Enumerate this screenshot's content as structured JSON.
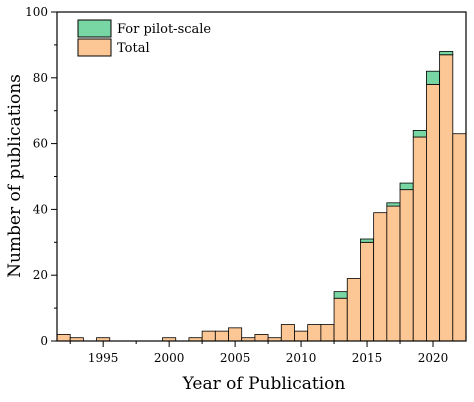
{
  "chart_data": {
    "type": "bar",
    "stacked": true,
    "xlabel": "Year of Publication",
    "ylabel": "Number of publications",
    "ylim": [
      0,
      100
    ],
    "xlim": [
      1991.5,
      2022.5
    ],
    "x_ticks": [
      1995,
      2000,
      2005,
      2010,
      2015,
      2020
    ],
    "y_ticks": [
      0,
      20,
      40,
      60,
      80,
      100
    ],
    "legend_position": "top-left",
    "years": [
      1992,
      1993,
      1994,
      1995,
      1996,
      1997,
      1998,
      1999,
      2000,
      2001,
      2002,
      2003,
      2004,
      2005,
      2006,
      2007,
      2008,
      2009,
      2010,
      2011,
      2012,
      2013,
      2014,
      2015,
      2016,
      2017,
      2018,
      2019,
      2020,
      2021,
      2022
    ],
    "series": [
      {
        "name": "Total",
        "color": "#fcc795",
        "values": [
          2,
          1,
          0,
          1,
          0,
          0,
          0,
          0,
          1,
          0,
          1,
          3,
          3,
          4,
          1,
          2,
          1,
          5,
          3,
          5,
          5,
          13,
          19,
          30,
          39,
          41,
          46,
          62,
          78,
          87,
          63
        ]
      },
      {
        "name": "For pilot-scale",
        "color": "#77d6a3",
        "values": [
          0,
          0,
          0,
          0,
          0,
          0,
          0,
          0,
          0,
          0,
          0,
          0,
          0,
          0,
          0,
          0,
          0,
          0,
          0,
          0,
          0,
          2,
          0,
          1,
          0,
          1,
          2,
          2,
          4,
          1,
          0
        ]
      }
    ],
    "legend": [
      "For pilot-scale",
      "Total"
    ]
  }
}
